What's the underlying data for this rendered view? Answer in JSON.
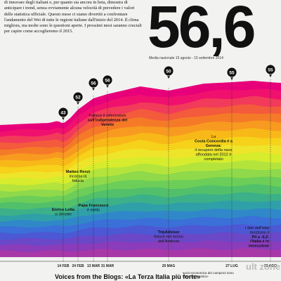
{
  "header": {
    "intro_text": "di innovare degli italiani e, per quanto sia ancora in beta, dimostra di anticipare i trend, senza ovviamente alcuna velocità di prevedere i valori delle statistica ufficiale. Questo mese ci siamo divertiti a confrontare l'andamento del Wei di tutte le regioni italiane dall'inizio del 2014. Il clima migliora, ma molte sono le questioni aperte. I prossimi mesi saranno cruciali per capire come accoglieremo il 2015.",
    "big_value": "56,6",
    "subtitle": "Media nazionale 15 agosto - 15 settembre 2014"
  },
  "chart_data": {
    "type": "area",
    "x": [
      "14 FEB",
      "24 FEB",
      "13 MAR",
      "31 MAR",
      "20 MAG",
      "27 LUG",
      "29 AGO"
    ],
    "markers": [
      {
        "label": "43",
        "x": "14 FEB"
      },
      {
        "label": "52",
        "x": "24 FEB"
      },
      {
        "label": "56",
        "x": "13 MAR"
      },
      {
        "label": "56",
        "x": "31 MAR"
      },
      {
        "label": "50",
        "x": "20 MAG"
      },
      {
        "label": "55",
        "x": "27 LUG"
      },
      {
        "label": "55",
        "x": "29 AGO"
      }
    ],
    "colors": [
      "#e8007a",
      "#f0106e",
      "#f23a5a",
      "#f45a3c",
      "#f57a28",
      "#f89a20",
      "#f8b818",
      "#f6d21a",
      "#eee52a",
      "#d6ec2c",
      "#b4e43c",
      "#8fd94a",
      "#6cce58",
      "#52c06a",
      "#3cb088",
      "#2fa0a8",
      "#3088c8",
      "#3a70d8",
      "#4c58d4",
      "#6a48c8",
      "#8a3cba",
      "#a838a8"
    ],
    "annotations": [
      {
        "x": "14 FEB",
        "bold": "Enrico Letta",
        "text": "si dimette"
      },
      {
        "x": "24 FEB",
        "bold": "Matteo Renzi",
        "text": "incassa la fiducia"
      },
      {
        "x": "13 MAR",
        "bold": "Papa Francesco",
        "text": "è eletto"
      },
      {
        "x": "31 MAR",
        "pre": "Fallisce il referendum",
        "bold": "sull'indipendenza del Veneto"
      },
      {
        "x": "20 MAG",
        "bold": "TripAdvisor",
        "text": "finisce nel mirino dell'Antitrust"
      },
      {
        "x": "27 LUG",
        "pre": "La",
        "bold": "Costa Concordia è a Genova:",
        "text": "il recupero della nave affondata nel 2012 è completato"
      },
      {
        "x": "29 AGO",
        "pre": "I dati dell'Istat mostrano il",
        "bold": "Pil a -0,2: l'Italia è in recessione"
      }
    ]
  },
  "footer": {
    "bottom_title": "Voices from the Blogs: «La Terza Italia più forte»",
    "bottom_text": "socio-economica dei campioni sono tutte: dal Trentino-",
    "watermark": "ult zone"
  }
}
